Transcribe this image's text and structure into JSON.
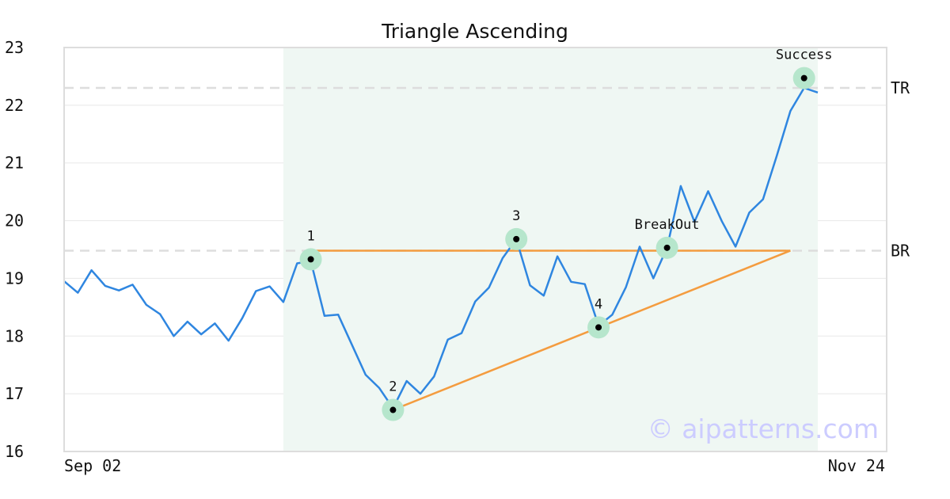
{
  "chart_data": {
    "type": "line",
    "title": "Triangle Ascending",
    "watermark": "© aipatterns.com",
    "x_tick_labels": [
      "Sep 02",
      "Nov 24"
    ],
    "ylim": [
      16,
      23
    ],
    "y_ticks": [
      16,
      17,
      18,
      19,
      20,
      21,
      22,
      23
    ],
    "grid": "horizontal",
    "pattern_window": {
      "start_index": 16,
      "end_index": 55
    },
    "series": [
      {
        "values": [
          18.95,
          18.75,
          19.14,
          18.87,
          18.79,
          18.89,
          18.54,
          18.38,
          18.0,
          18.25,
          18.03,
          18.22,
          17.92,
          18.31,
          18.78,
          18.86,
          18.59,
          19.26,
          19.3,
          18.35,
          18.37,
          17.85,
          17.33,
          17.1,
          16.75,
          17.22,
          17.0,
          17.3,
          17.94,
          18.05,
          18.6,
          18.84,
          19.35,
          19.68,
          18.88,
          18.7,
          19.38,
          18.94,
          18.9,
          18.18,
          18.37,
          18.85,
          19.55,
          19.0,
          19.53,
          20.6,
          19.98,
          20.51,
          19.99,
          19.55,
          20.14,
          20.37,
          21.12,
          21.9,
          22.3,
          22.22
        ],
        "color": "#2f86e0"
      }
    ],
    "levels": [
      {
        "label": "TR",
        "y": 22.3
      },
      {
        "label": "BR",
        "y": 19.48
      }
    ],
    "trendlines": [
      {
        "color": "#f49c3f",
        "points": [
          [
            18,
            19.48
          ],
          [
            53,
            19.48
          ]
        ]
      },
      {
        "color": "#f49c3f",
        "points": [
          [
            24,
            16.72
          ],
          [
            53,
            19.48
          ]
        ]
      }
    ],
    "annotations": [
      {
        "label": "1",
        "x": 18,
        "y": 19.33
      },
      {
        "label": "2",
        "x": 24,
        "y": 16.72
      },
      {
        "label": "3",
        "x": 33,
        "y": 19.68
      },
      {
        "label": "4",
        "x": 39,
        "y": 18.15
      },
      {
        "label": "BreakOut",
        "x": 44,
        "y": 19.53
      },
      {
        "label": "Success",
        "x": 54,
        "y": 22.47
      }
    ],
    "colors": {
      "price_line": "#2f86e0",
      "trendline": "#f49c3f",
      "pattern_area": "#eff7f3",
      "marker_halo": "#b6e6cc",
      "marker_dot": "#000000",
      "level_line": "#dddddd",
      "grid": "#e8e8e8",
      "frame": "#dddddd",
      "watermark": "#ccccff"
    }
  }
}
